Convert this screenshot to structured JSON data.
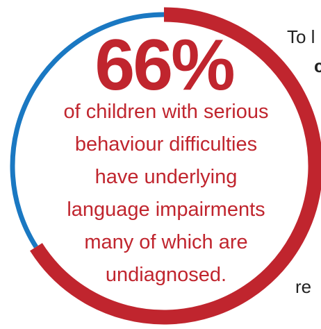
{
  "stat": {
    "value": "66%",
    "description_lines": [
      "of children with serious",
      "behaviour difficulties",
      "have underlying",
      "language impairments",
      "many of which are",
      "undiagnosed."
    ],
    "ring_fraction": 0.66
  },
  "side_text": {
    "line_1": "To l",
    "line_2": "c",
    "line_3": "re"
  },
  "colors": {
    "primary_red": "#c0252e",
    "secondary_blue": "#1a78c2",
    "side_text": "#222222"
  }
}
